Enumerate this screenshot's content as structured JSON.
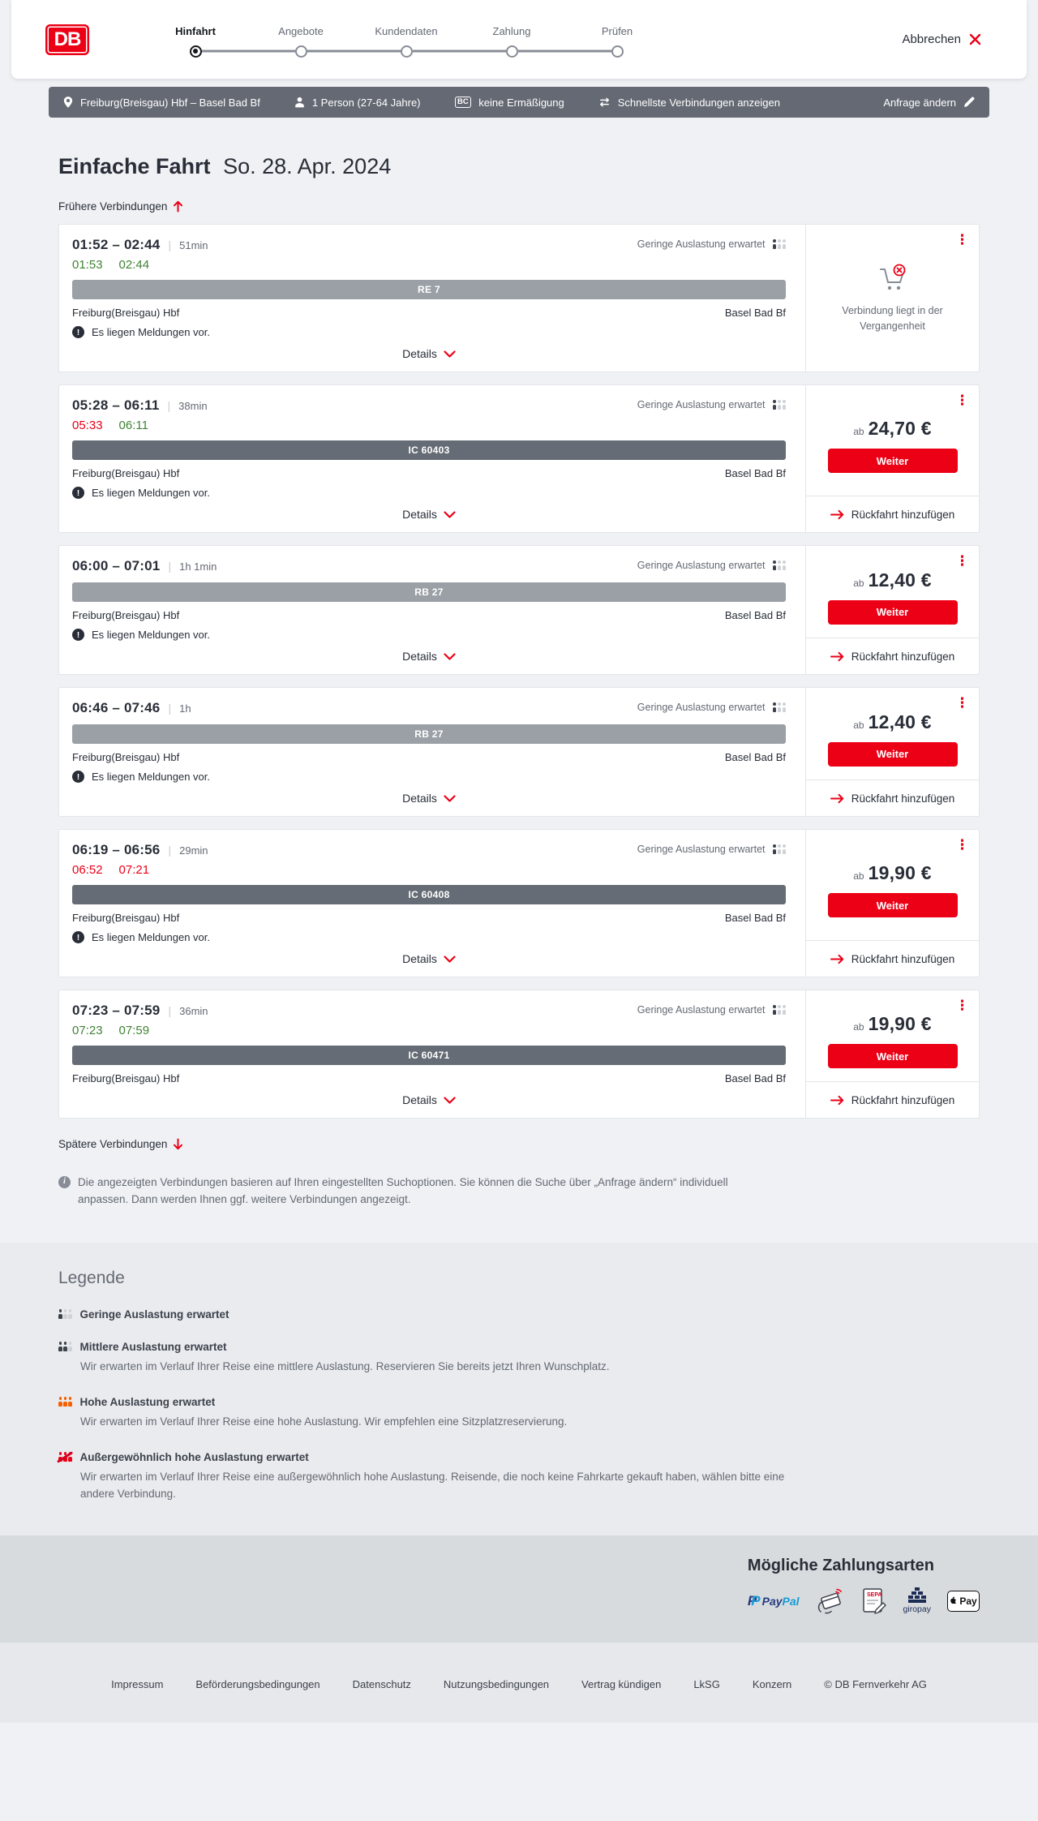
{
  "brand": {
    "logo_text": "DB"
  },
  "icons": {
    "cancel_x": "✕",
    "menu_dots": "⋮",
    "alert_glyph": "!",
    "info_glyph": "i"
  },
  "colors": {
    "db_red": "#ec0016",
    "on_time_green": "#408335",
    "coal": "#282d37",
    "gray": "#646973",
    "summary_bg": "#646973"
  },
  "header": {
    "steps": [
      {
        "label": "Hinfahrt",
        "active": true
      },
      {
        "label": "Angebote",
        "active": false
      },
      {
        "label": "Kundendaten",
        "active": false
      },
      {
        "label": "Zahlung",
        "active": false
      },
      {
        "label": "Prüfen",
        "active": false
      }
    ],
    "cancel_label": "Abbrechen"
  },
  "summary_bar": {
    "route": "Freiburg(Breisgau) Hbf – Basel Bad Bf",
    "passenger": "1 Person (27-64 Jahre)",
    "bahncard_badge": "BC",
    "discount": "keine Ermäßigung",
    "fastest_toggle": "Schnellste Verbindungen anzeigen",
    "edit_request": "Anfrage ändern"
  },
  "results": {
    "trip_type": "Einfache Fahrt",
    "date": "So. 28. Apr. 2024",
    "earlier_link": "Frühere Verbindungen",
    "later_link": "Spätere Verbindungen",
    "details_label": "Details",
    "price_prefix": "ab",
    "weiter_label": "Weiter",
    "return_label": "Rückfahrt hinzufügen",
    "messages_label": "Es liegen Meldungen vor.",
    "occupancy_label": "Geringe Auslastung erwartet",
    "past_label": "Verbindung liegt in der Vergangenheit",
    "connections": [
      {
        "planned": "01:52 – 02:44",
        "duration": "51min",
        "actual": [
          {
            "t": "01:53",
            "status": "ontime"
          },
          {
            "t": "02:44",
            "status": "ontime"
          }
        ],
        "train": "RE 7",
        "train_class": "regional",
        "from": "Freiburg(Breisgau) Hbf",
        "to": "Basel Bad Bf",
        "has_messages": true,
        "past": true,
        "price": null
      },
      {
        "planned": "05:28 – 06:11",
        "duration": "38min",
        "actual": [
          {
            "t": "05:33",
            "status": "delayed"
          },
          {
            "t": "06:11",
            "status": "ontime"
          }
        ],
        "train": "IC 60403",
        "train_class": "ic",
        "from": "Freiburg(Breisgau) Hbf",
        "to": "Basel Bad Bf",
        "has_messages": true,
        "past": false,
        "price": "24,70 €"
      },
      {
        "planned": "06:00 – 07:01",
        "duration": "1h 1min",
        "actual": [],
        "train": "RB 27",
        "train_class": "regional",
        "from": "Freiburg(Breisgau) Hbf",
        "to": "Basel Bad Bf",
        "has_messages": true,
        "past": false,
        "price": "12,40 €"
      },
      {
        "planned": "06:46 – 07:46",
        "duration": "1h",
        "actual": [],
        "train": "RB 27",
        "train_class": "regional",
        "from": "Freiburg(Breisgau) Hbf",
        "to": "Basel Bad Bf",
        "has_messages": true,
        "past": false,
        "price": "12,40 €"
      },
      {
        "planned": "06:19 – 06:56",
        "duration": "29min",
        "actual": [
          {
            "t": "06:52",
            "status": "delayed"
          },
          {
            "t": "07:21",
            "status": "delayed"
          }
        ],
        "train": "IC 60408",
        "train_class": "ic",
        "from": "Freiburg(Breisgau) Hbf",
        "to": "Basel Bad Bf",
        "has_messages": true,
        "past": false,
        "price": "19,90 €"
      },
      {
        "planned": "07:23 – 07:59",
        "duration": "36min",
        "actual": [
          {
            "t": "07:23",
            "status": "ontime"
          },
          {
            "t": "07:59",
            "status": "ontime"
          }
        ],
        "train": "IC 60471",
        "train_class": "ic",
        "from": "Freiburg(Breisgau) Hbf",
        "to": "Basel Bad Bf",
        "has_messages": false,
        "past": false,
        "price": "19,90 €"
      }
    ],
    "note": "Die angezeigten Verbindungen basieren auf Ihren eingestellten Suchoptionen. Sie können die Suche über „Anfrage ändern“ individuell anpassen. Dann werden Ihnen ggf. weitere Verbindungen angezeigt."
  },
  "legend": {
    "title": "Legende",
    "items": [
      {
        "level": "low",
        "label": "Geringe Auslastung erwartet",
        "description": ""
      },
      {
        "level": "medium",
        "label": "Mittlere Auslastung erwartet",
        "description": "Wir erwarten im Verlauf Ihrer Reise eine mittlere Auslastung. Reservieren Sie bereits jetzt Ihren Wunschplatz."
      },
      {
        "level": "high",
        "label": "Hohe Auslastung erwartet",
        "description": "Wir erwarten im Verlauf Ihrer Reise eine hohe Auslastung. Wir empfehlen eine Sitzplatzreservierung."
      },
      {
        "level": "very-high",
        "label": "Außergewöhnlich hohe Auslastung erwartet",
        "description": "Wir erwarten im Verlauf Ihrer Reise eine außergewöhnlich hohe Auslastung. Reisende, die noch keine Fahrkarte gekauft haben, wählen bitte eine andere Verbindung."
      }
    ]
  },
  "payments": {
    "title": "Mögliche Zahlungsarten",
    "methods": [
      "PayPal",
      "Kreditkarte",
      "SEPA-Lastschrift",
      "giropay",
      "Apple Pay"
    ],
    "labels": {
      "paypal_mark": "P",
      "paypal_word_1": "Pay",
      "paypal_word_2": "Pal",
      "sepa": "SEPA",
      "giropay": "giropay",
      "applepay": "Pay"
    }
  },
  "footer": {
    "links": [
      "Impressum",
      "Beförderungsbedingungen",
      "Datenschutz",
      "Nutzungsbedingungen",
      "Vertrag kündigen",
      "LkSG",
      "Konzern"
    ],
    "copyright": "© DB Fernverkehr AG"
  }
}
